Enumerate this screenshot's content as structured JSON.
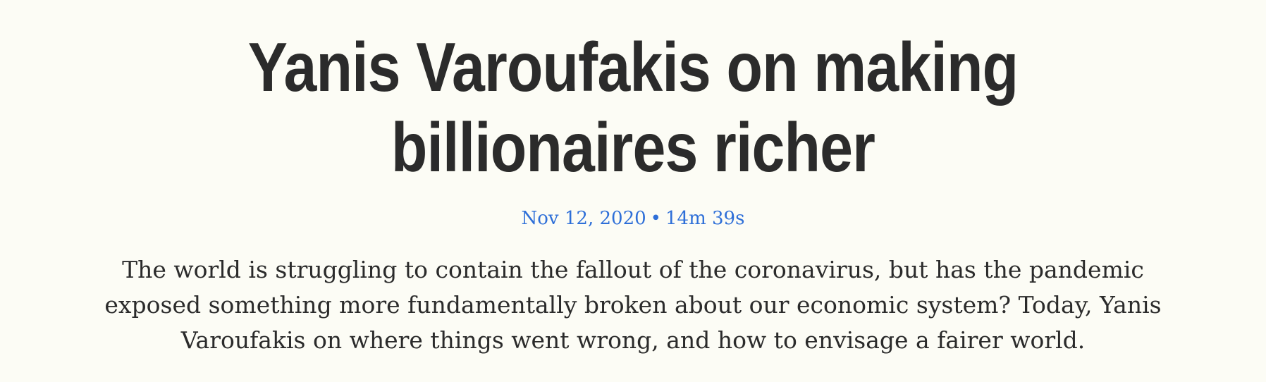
{
  "episode": {
    "title": "Yanis Varoufakis on making billionaires richer",
    "date": "Nov 12, 2020",
    "separator": "•",
    "duration": "14m 39s",
    "description": "The world is struggling to contain the fallout of the coronavirus, but has the pandemic exposed something more fundamentally broken about our economic system? Today, Yanis Varoufakis on where things went wrong, and how to envisage a fairer world."
  },
  "colors": {
    "background": "#fcfcf5",
    "text": "#2b2b2b",
    "meta_accent": "#2e6fd8"
  }
}
